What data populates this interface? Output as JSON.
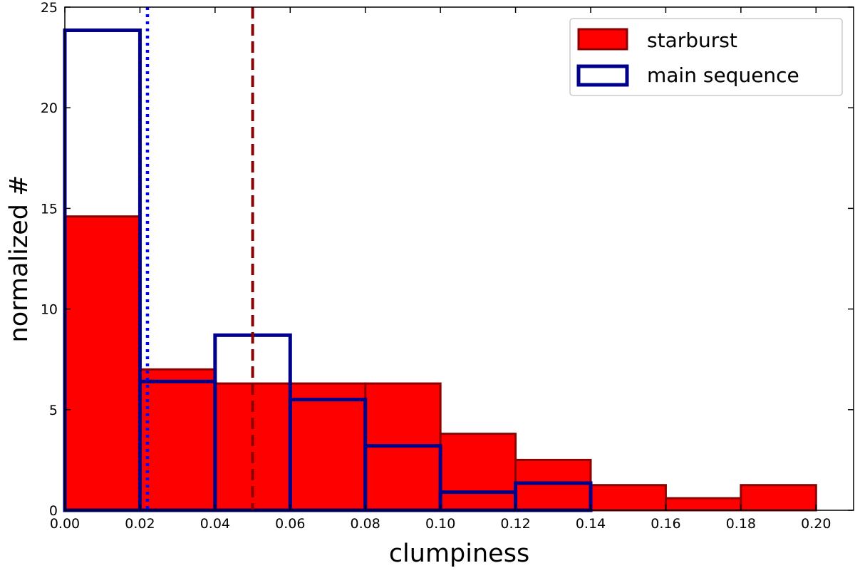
{
  "chart_data": {
    "type": "bar",
    "subtype": "histogram",
    "title": "",
    "xlabel": "clumpiness",
    "ylabel": "normalized #",
    "xlim": [
      0.0,
      0.21
    ],
    "ylim": [
      0,
      25
    ],
    "xticks": [
      "0.00",
      "0.02",
      "0.04",
      "0.06",
      "0.08",
      "0.10",
      "0.12",
      "0.14",
      "0.16",
      "0.18",
      "0.20"
    ],
    "yticks": [
      "0",
      "5",
      "10",
      "15",
      "20",
      "25"
    ],
    "grid": false,
    "legend_position": "top-right",
    "series": [
      {
        "name": "starburst",
        "style": "filled",
        "fill_color": "#ff0000",
        "edge_color": "#8b0000",
        "bins": [
          {
            "x0": 0.0,
            "x1": 0.02,
            "value": 14.6
          },
          {
            "x0": 0.02,
            "x1": 0.04,
            "value": 7.0
          },
          {
            "x0": 0.04,
            "x1": 0.06,
            "value": 6.3
          },
          {
            "x0": 0.06,
            "x1": 0.08,
            "value": 6.3
          },
          {
            "x0": 0.08,
            "x1": 0.1,
            "value": 6.3
          },
          {
            "x0": 0.1,
            "x1": 0.12,
            "value": 3.8
          },
          {
            "x0": 0.12,
            "x1": 0.14,
            "value": 2.5
          },
          {
            "x0": 0.14,
            "x1": 0.16,
            "value": 1.25
          },
          {
            "x0": 0.16,
            "x1": 0.18,
            "value": 0.6
          },
          {
            "x0": 0.18,
            "x1": 0.2,
            "value": 1.25
          }
        ]
      },
      {
        "name": "main sequence",
        "style": "step-outline",
        "edge_color": "#00008b",
        "bins": [
          {
            "x0": 0.0,
            "x1": 0.02,
            "value": 23.85
          },
          {
            "x0": 0.02,
            "x1": 0.04,
            "value": 6.4
          },
          {
            "x0": 0.04,
            "x1": 0.06,
            "value": 8.7
          },
          {
            "x0": 0.06,
            "x1": 0.08,
            "value": 5.5
          },
          {
            "x0": 0.08,
            "x1": 0.1,
            "value": 3.2
          },
          {
            "x0": 0.1,
            "x1": 0.12,
            "value": 0.9
          },
          {
            "x0": 0.12,
            "x1": 0.14,
            "value": 1.35
          }
        ]
      }
    ],
    "reference_lines": [
      {
        "series": "starburst",
        "x": 0.05,
        "style": "dashed",
        "color": "#8b0000"
      },
      {
        "series": "main sequence",
        "x": 0.022,
        "style": "dotted",
        "color": "#0000ff"
      }
    ]
  }
}
